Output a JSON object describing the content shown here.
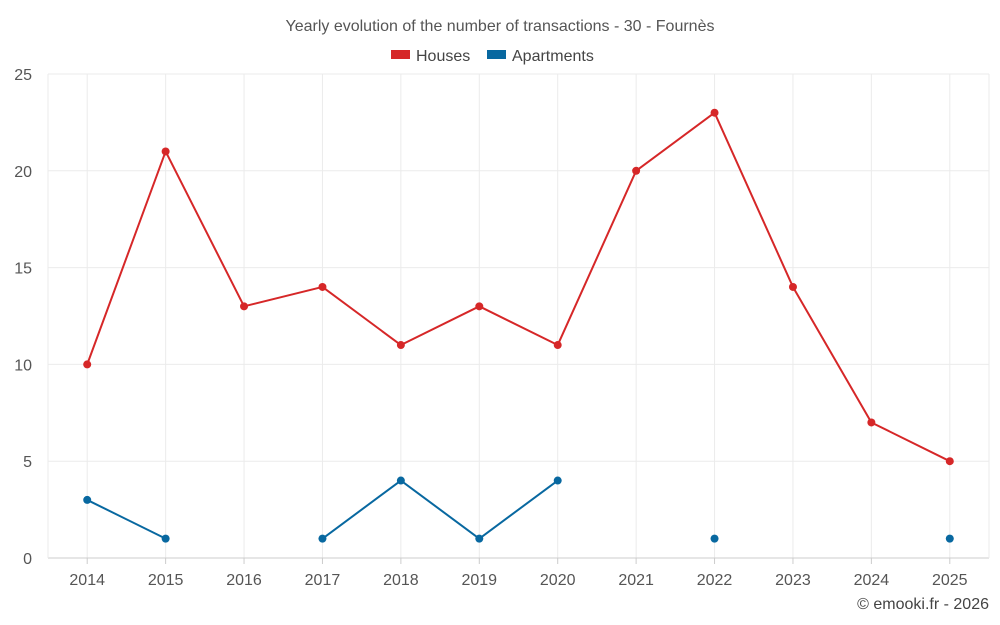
{
  "chart_data": {
    "type": "line",
    "title": "Yearly evolution of the number of transactions - 30 - Fournès",
    "categories": [
      "2014",
      "2015",
      "2016",
      "2017",
      "2018",
      "2019",
      "2020",
      "2021",
      "2022",
      "2023",
      "2024",
      "2025"
    ],
    "series": [
      {
        "name": "Houses",
        "color": "#d62728",
        "values": [
          10,
          21,
          13,
          14,
          11,
          13,
          11,
          20,
          23,
          14,
          7,
          5
        ]
      },
      {
        "name": "Apartments",
        "color": "#0868a0",
        "values": [
          3,
          1,
          null,
          1,
          4,
          1,
          4,
          null,
          1,
          null,
          null,
          1
        ]
      }
    ],
    "yticks": [
      0,
      5,
      10,
      15,
      20,
      25
    ],
    "ylim": [
      0,
      25
    ],
    "xlabel": "",
    "ylabel": "",
    "grid": true,
    "legend": "top-center"
  },
  "credit": "© emooki.fr - 2026"
}
